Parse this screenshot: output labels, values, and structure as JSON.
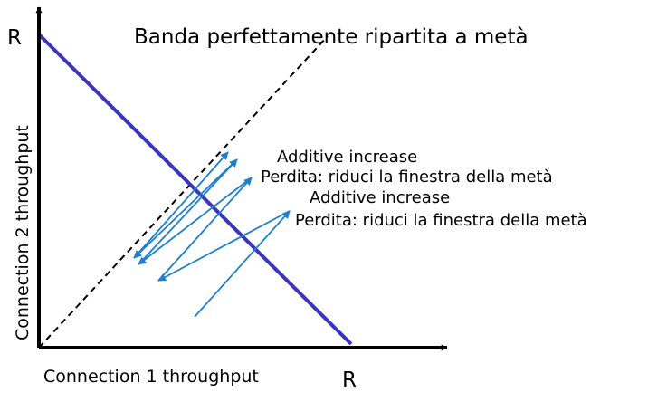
{
  "diagram": {
    "y_axis_label": "Connection 2 throughput",
    "x_axis_label": "Connection 1 throughput",
    "y_axis_max_label": "R",
    "x_axis_max_label": "R",
    "equal_share_label": "Banda perfettamente ripartita a metà",
    "annotations": [
      "Additive increase",
      "Perdita: riduci la finestra della metà",
      "Additive increase",
      "Perdita: riduci la finestra della metà"
    ]
  },
  "colors": {
    "axes": "#000000",
    "efficiency_line": "#3b33c4",
    "equal_share_line": "#000000",
    "trajectory": "#1a7fd6",
    "text": "#000000"
  }
}
